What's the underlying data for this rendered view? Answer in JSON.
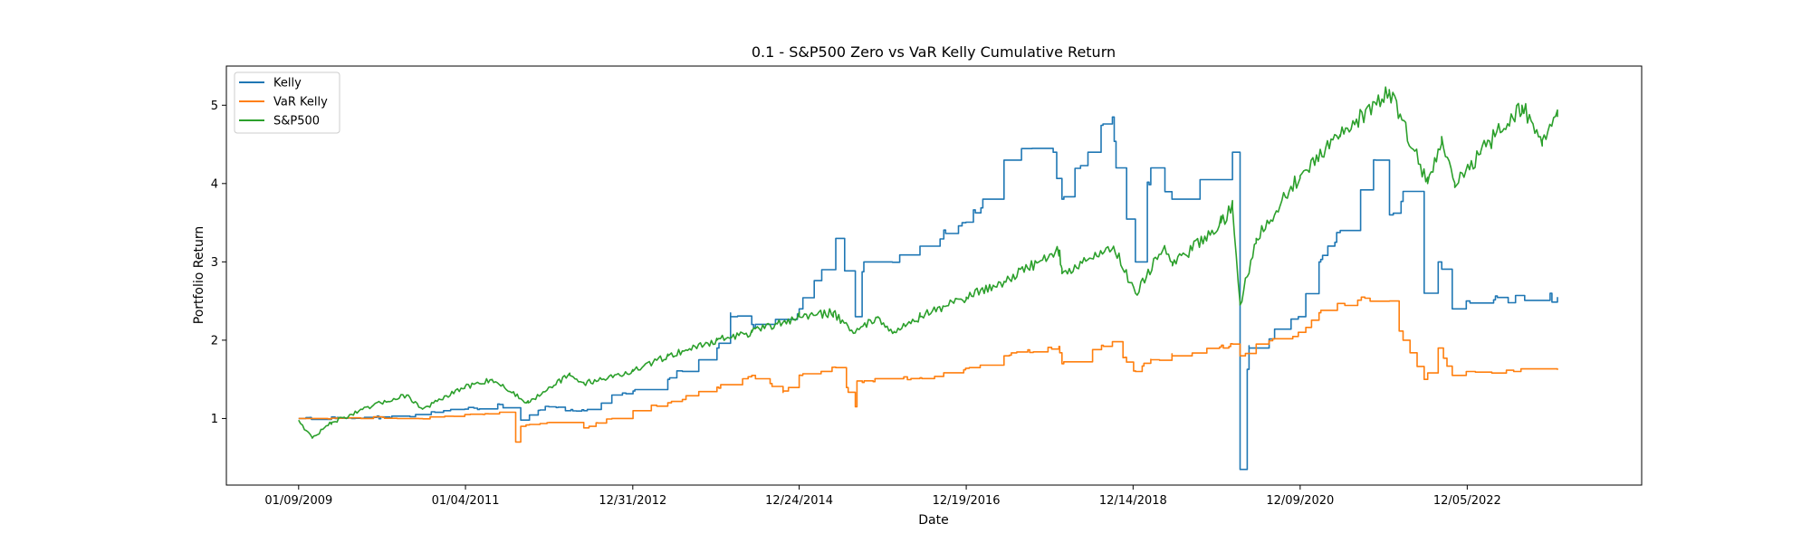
{
  "chart_data": {
    "type": "line",
    "title": "0.1 - S&P500 Zero vs VaR Kelly Cumulative Return",
    "xlabel": "Date",
    "ylabel": "Portfolio Return",
    "x_ticks": [
      "01/09/2009",
      "01/04/2011",
      "12/31/2012",
      "12/24/2014",
      "12/19/2016",
      "12/14/2018",
      "12/09/2020",
      "12/05/2022"
    ],
    "y_ticks": [
      1,
      2,
      3,
      4,
      5
    ],
    "xlim": [
      "2008-03-01",
      "2025-01-01"
    ],
    "ylim": [
      0.15,
      5.5
    ],
    "grid": false,
    "legend_position": "top-left",
    "series": [
      {
        "name": "Kelly",
        "color": "#1f77b4",
        "points": [
          [
            "2009-01-09",
            1.0
          ],
          [
            "2010-01-01",
            1.02
          ],
          [
            "2010-06-01",
            1.05
          ],
          [
            "2010-10-01",
            1.1
          ],
          [
            "2011-01-01",
            1.12
          ],
          [
            "2011-06-01",
            1.18
          ],
          [
            "2011-09-01",
            0.98
          ],
          [
            "2012-01-01",
            1.15
          ],
          [
            "2012-06-01",
            1.1
          ],
          [
            "2012-10-01",
            1.3
          ],
          [
            "2013-01-01",
            1.35
          ],
          [
            "2013-06-01",
            1.5
          ],
          [
            "2014-01-01",
            1.9
          ],
          [
            "2014-03-01",
            2.3
          ],
          [
            "2014-06-01",
            2.2
          ],
          [
            "2014-12-24",
            2.4
          ],
          [
            "2015-04-01",
            2.9
          ],
          [
            "2015-06-01",
            3.3
          ],
          [
            "2015-08-25",
            2.3
          ],
          [
            "2015-10-01",
            3.0
          ],
          [
            "2016-01-01",
            3.0
          ],
          [
            "2016-06-01",
            3.2
          ],
          [
            "2016-12-01",
            3.5
          ],
          [
            "2017-03-01",
            3.8
          ],
          [
            "2017-06-01",
            4.3
          ],
          [
            "2017-10-01",
            4.45
          ],
          [
            "2018-01-01",
            4.4
          ],
          [
            "2018-02-08",
            3.8
          ],
          [
            "2018-06-01",
            4.4
          ],
          [
            "2018-09-15",
            4.85
          ],
          [
            "2018-10-01",
            4.2
          ],
          [
            "2018-12-24",
            3.0
          ],
          [
            "2019-03-01",
            4.2
          ],
          [
            "2019-06-01",
            3.8
          ],
          [
            "2019-10-01",
            4.05
          ],
          [
            "2020-02-19",
            4.4
          ],
          [
            "2020-03-23",
            0.35
          ],
          [
            "2020-05-01",
            1.9
          ],
          [
            "2020-12-01",
            2.3
          ],
          [
            "2021-03-01",
            3.0
          ],
          [
            "2021-06-01",
            3.4
          ],
          [
            "2021-11-01",
            4.3
          ],
          [
            "2022-01-01",
            3.6
          ],
          [
            "2022-03-01",
            3.9
          ],
          [
            "2022-06-01",
            2.6
          ],
          [
            "2022-08-01",
            3.0
          ],
          [
            "2022-10-01",
            2.4
          ],
          [
            "2022-12-01",
            2.5
          ],
          [
            "2024-01-01",
            2.55
          ]
        ]
      },
      {
        "name": "VaR Kelly",
        "color": "#ff7f0e",
        "points": [
          [
            "2009-01-09",
            1.0
          ],
          [
            "2010-01-01",
            1.02
          ],
          [
            "2010-06-01",
            1.0
          ],
          [
            "2011-01-01",
            1.05
          ],
          [
            "2011-06-01",
            1.08
          ],
          [
            "2011-08-10",
            0.7
          ],
          [
            "2011-09-01",
            0.9
          ],
          [
            "2012-01-01",
            0.95
          ],
          [
            "2012-06-01",
            0.88
          ],
          [
            "2012-10-01",
            1.0
          ],
          [
            "2013-01-01",
            1.1
          ],
          [
            "2013-06-01",
            1.2
          ],
          [
            "2014-01-01",
            1.4
          ],
          [
            "2014-06-01",
            1.55
          ],
          [
            "2014-10-15",
            1.35
          ],
          [
            "2015-01-01",
            1.55
          ],
          [
            "2015-06-01",
            1.65
          ],
          [
            "2015-08-25",
            1.15
          ],
          [
            "2015-09-01",
            1.48
          ],
          [
            "2016-06-01",
            1.52
          ],
          [
            "2017-01-01",
            1.65
          ],
          [
            "2017-06-01",
            1.8
          ],
          [
            "2018-01-26",
            1.92
          ],
          [
            "2018-02-08",
            1.7
          ],
          [
            "2018-09-15",
            1.98
          ],
          [
            "2018-12-24",
            1.6
          ],
          [
            "2019-03-01",
            1.75
          ],
          [
            "2019-06-01",
            1.8
          ],
          [
            "2020-02-19",
            1.95
          ],
          [
            "2020-03-23",
            1.8
          ],
          [
            "2020-06-01",
            1.95
          ],
          [
            "2020-12-01",
            2.1
          ],
          [
            "2021-03-01",
            2.35
          ],
          [
            "2021-09-01",
            2.55
          ],
          [
            "2022-01-01",
            2.5
          ],
          [
            "2022-03-01",
            2.0
          ],
          [
            "2022-06-01",
            1.5
          ],
          [
            "2022-08-01",
            1.9
          ],
          [
            "2022-10-01",
            1.55
          ],
          [
            "2022-12-01",
            1.6
          ],
          [
            "2024-01-01",
            1.62
          ]
        ]
      },
      {
        "name": "S&P500",
        "color": "#2ca02c",
        "points": [
          [
            "2009-01-09",
            0.98
          ],
          [
            "2009-03-09",
            0.75
          ],
          [
            "2009-06-01",
            0.95
          ],
          [
            "2010-01-01",
            1.2
          ],
          [
            "2010-04-23",
            1.3
          ],
          [
            "2010-07-01",
            1.12
          ],
          [
            "2011-01-01",
            1.4
          ],
          [
            "2011-04-29",
            1.5
          ],
          [
            "2011-10-03",
            1.2
          ],
          [
            "2012-01-01",
            1.4
          ],
          [
            "2012-04-01",
            1.55
          ],
          [
            "2012-06-01",
            1.45
          ],
          [
            "2012-12-31",
            1.6
          ],
          [
            "2013-06-01",
            1.8
          ],
          [
            "2013-12-31",
            2.0
          ],
          [
            "2014-06-01",
            2.1
          ],
          [
            "2014-12-24",
            2.3
          ],
          [
            "2015-05-21",
            2.35
          ],
          [
            "2015-08-25",
            2.1
          ],
          [
            "2015-12-01",
            2.3
          ],
          [
            "2016-02-11",
            2.1
          ],
          [
            "2016-06-01",
            2.3
          ],
          [
            "2016-12-19",
            2.55
          ],
          [
            "2017-06-01",
            2.75
          ],
          [
            "2018-01-26",
            3.15
          ],
          [
            "2018-02-08",
            2.85
          ],
          [
            "2018-09-20",
            3.2
          ],
          [
            "2018-12-24",
            2.6
          ],
          [
            "2019-04-30",
            3.2
          ],
          [
            "2019-06-03",
            2.95
          ],
          [
            "2019-12-31",
            3.5
          ],
          [
            "2020-02-19",
            3.7
          ],
          [
            "2020-03-23",
            2.45
          ],
          [
            "2020-06-01",
            3.3
          ],
          [
            "2020-12-09",
            4.1
          ],
          [
            "2021-06-01",
            4.6
          ],
          [
            "2021-12-31",
            5.2
          ],
          [
            "2022-06-16",
            4.0
          ],
          [
            "2022-08-16",
            4.6
          ],
          [
            "2022-10-12",
            3.95
          ],
          [
            "2023-02-01",
            4.4
          ],
          [
            "2023-07-31",
            5.0
          ],
          [
            "2023-10-27",
            4.55
          ],
          [
            "2024-01-01",
            4.85
          ]
        ]
      }
    ]
  }
}
